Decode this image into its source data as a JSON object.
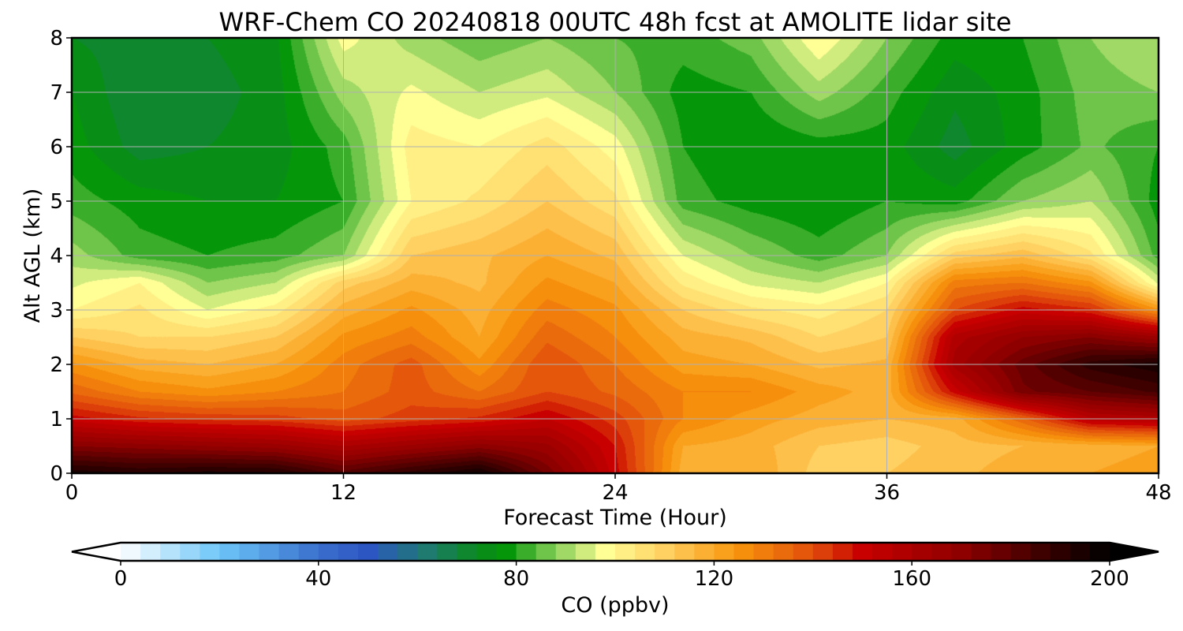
{
  "chart_data": {
    "type": "heatmap",
    "title": "WRF-Chem CO  20240818 00UTC 48h fcst at AMOLITE lidar site",
    "xlabel": "Forecast Time (Hour)",
    "ylabel": "Alt AGL (km)",
    "xlim": [
      0,
      48
    ],
    "ylim": [
      0,
      8
    ],
    "x_ticks": [
      0,
      12,
      24,
      36,
      48
    ],
    "x_tick_labels": [
      "0",
      "12",
      "24",
      "36",
      "48"
    ],
    "y_ticks": [
      0,
      1,
      2,
      3,
      4,
      5,
      6,
      7,
      8
    ],
    "y_tick_labels": [
      "0",
      "1",
      "2",
      "3",
      "4",
      "5",
      "6",
      "7",
      "8"
    ],
    "grid": true,
    "x": [
      0,
      3,
      6,
      9,
      12,
      15,
      18,
      21,
      24,
      27,
      30,
      33,
      36,
      39,
      42,
      45,
      48
    ],
    "y": [
      0,
      0.5,
      1,
      1.5,
      2,
      2.5,
      3,
      3.5,
      4,
      5,
      6,
      7,
      8
    ],
    "z": [
      [
        195,
        192,
        194,
        193,
        182,
        190,
        197,
        175,
        150,
        118,
        120,
        110,
        112,
        115,
        118,
        120,
        122
      ],
      [
        172,
        170,
        168,
        166,
        160,
        165,
        170,
        165,
        148,
        120,
        118,
        112,
        110,
        114,
        116,
        118,
        120
      ],
      [
        150,
        145,
        143,
        142,
        138,
        142,
        145,
        152,
        142,
        128,
        122,
        118,
        116,
        118,
        135,
        155,
        158
      ],
      [
        135,
        128,
        125,
        128,
        132,
        138,
        132,
        140,
        135,
        128,
        128,
        122,
        118,
        150,
        175,
        180,
        185
      ],
      [
        125,
        118,
        116,
        120,
        130,
        138,
        125,
        140,
        132,
        122,
        120,
        115,
        117,
        162,
        178,
        190,
        195
      ],
      [
        112,
        108,
        108,
        112,
        125,
        130,
        120,
        135,
        128,
        118,
        115,
        108,
        112,
        158,
        168,
        172,
        165
      ],
      [
        100,
        105,
        96,
        102,
        118,
        125,
        118,
        130,
        125,
        112,
        105,
        102,
        108,
        140,
        150,
        145,
        125
      ],
      [
        95,
        100,
        88,
        92,
        110,
        118,
        115,
        125,
        120,
        103,
        95,
        92,
        100,
        130,
        132,
        125,
        95
      ],
      [
        90,
        82,
        80,
        82,
        88,
        112,
        115,
        120,
        115,
        96,
        88,
        82,
        88,
        110,
        115,
        105,
        82
      ],
      [
        82,
        78,
        76,
        76,
        80,
        100,
        105,
        112,
        105,
        82,
        78,
        76,
        80,
        78,
        88,
        92,
        78
      ],
      [
        78,
        70,
        72,
        74,
        82,
        102,
        100,
        106,
        98,
        80,
        76,
        78,
        78,
        70,
        78,
        85,
        80
      ],
      [
        76,
        68,
        70,
        74,
        90,
        97,
        92,
        95,
        88,
        78,
        80,
        90,
        82,
        73,
        78,
        86,
        88
      ],
      [
        72,
        70,
        72,
        75,
        98,
        90,
        85,
        88,
        84,
        82,
        86,
        100,
        88,
        78,
        80,
        88,
        92
      ]
    ],
    "colorbar": {
      "label": "CO  (ppbv)",
      "min": 0,
      "max": 200,
      "ticks": [
        0,
        40,
        80,
        120,
        160,
        200
      ],
      "tick_labels": [
        "0",
        "40",
        "80",
        "120",
        "160",
        "200"
      ],
      "extend": "both",
      "levels": 50,
      "stops": [
        {
          "v": 0,
          "c": "#ffffff"
        },
        {
          "v": 20,
          "c": "#6cc6f8"
        },
        {
          "v": 40,
          "c": "#3a6fcc"
        },
        {
          "v": 50,
          "c": "#2c56c2"
        },
        {
          "v": 62,
          "c": "#1f7a70"
        },
        {
          "v": 72,
          "c": "#0a8a1e"
        },
        {
          "v": 78,
          "c": "#05960a"
        },
        {
          "v": 88,
          "c": "#8ad05a"
        },
        {
          "v": 98,
          "c": "#ffff96"
        },
        {
          "v": 110,
          "c": "#ffd062"
        },
        {
          "v": 125,
          "c": "#f7940c"
        },
        {
          "v": 140,
          "c": "#e24f0c"
        },
        {
          "v": 150,
          "c": "#c80000"
        },
        {
          "v": 170,
          "c": "#8e0000"
        },
        {
          "v": 185,
          "c": "#440000"
        },
        {
          "v": 200,
          "c": "#000000"
        }
      ]
    }
  }
}
